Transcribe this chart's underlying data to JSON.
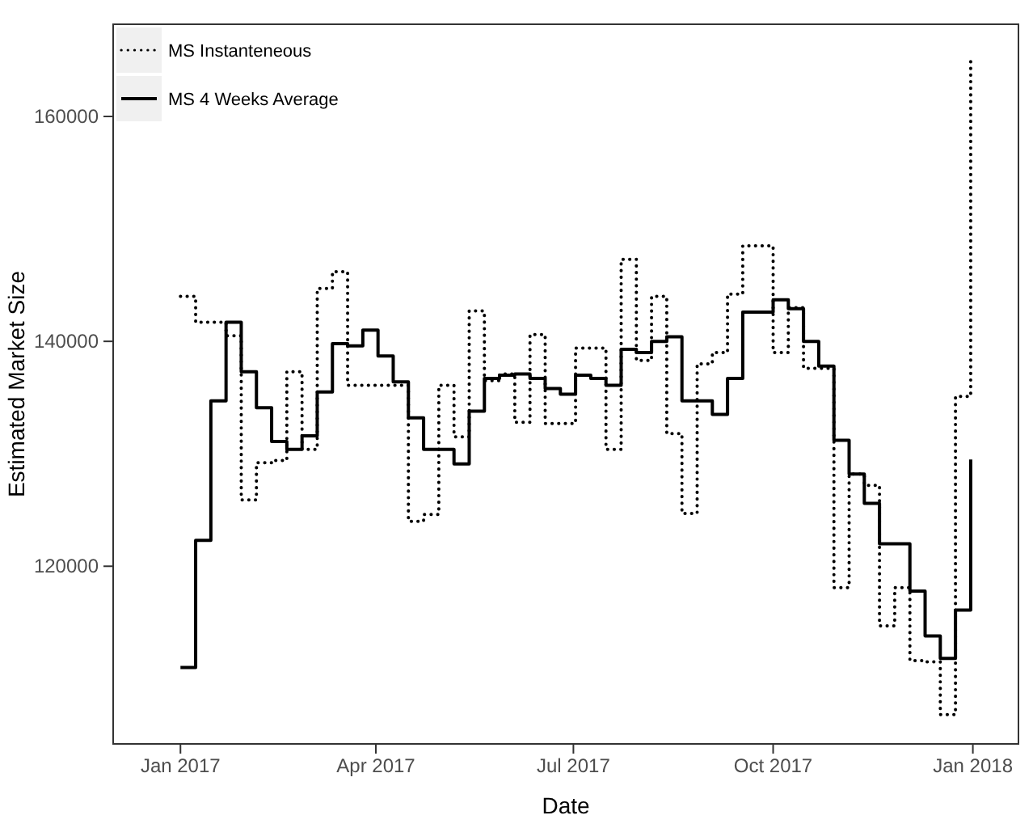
{
  "chart_data": {
    "type": "step",
    "xlabel": "Date",
    "ylabel": "Estimated Market Size",
    "x": [
      "2017-01-01",
      "2017-01-08",
      "2017-01-15",
      "2017-01-22",
      "2017-01-29",
      "2017-02-05",
      "2017-02-12",
      "2017-02-19",
      "2017-02-26",
      "2017-03-05",
      "2017-03-12",
      "2017-03-19",
      "2017-03-26",
      "2017-04-02",
      "2017-04-09",
      "2017-04-16",
      "2017-04-23",
      "2017-04-30",
      "2017-05-07",
      "2017-05-14",
      "2017-05-21",
      "2017-05-28",
      "2017-06-04",
      "2017-06-11",
      "2017-06-18",
      "2017-06-25",
      "2017-07-02",
      "2017-07-09",
      "2017-07-16",
      "2017-07-23",
      "2017-07-30",
      "2017-08-06",
      "2017-08-13",
      "2017-08-20",
      "2017-08-27",
      "2017-09-03",
      "2017-09-10",
      "2017-09-17",
      "2017-09-24",
      "2017-10-01",
      "2017-10-08",
      "2017-10-15",
      "2017-10-22",
      "2017-10-29",
      "2017-11-05",
      "2017-11-12",
      "2017-11-19",
      "2017-11-26",
      "2017-12-03",
      "2017-12-10",
      "2017-12-17",
      "2017-12-24",
      "2017-12-31"
    ],
    "series": [
      {
        "name": "MS Instanteneous",
        "color": "#000000",
        "line_style": "dotted",
        "values": [
          144000,
          141700,
          141700,
          140500,
          125900,
          129200,
          129400,
          137300,
          130400,
          144700,
          146200,
          136100,
          136100,
          136100,
          136100,
          124000,
          124600,
          136100,
          131500,
          142700,
          136500,
          137100,
          132800,
          140600,
          132700,
          132700,
          139400,
          139400,
          130400,
          147300,
          138300,
          144000,
          131800,
          124700,
          138000,
          139000,
          144200,
          148500,
          148500,
          139000,
          143000,
          137600,
          137600,
          118100,
          128200,
          127200,
          114700,
          118100,
          111600,
          111500,
          106800,
          135100,
          165300
        ]
      },
      {
        "name": "MS 4 Weeks Average",
        "color": "#000000",
        "line_style": "solid",
        "values": [
          111000,
          122300,
          134700,
          141700,
          137300,
          134100,
          131100,
          130400,
          131600,
          135500,
          139800,
          139600,
          141000,
          138700,
          136400,
          133200,
          130400,
          130400,
          129100,
          133800,
          136700,
          137000,
          137100,
          136700,
          135800,
          135300,
          137000,
          136700,
          136100,
          139300,
          139000,
          140000,
          140400,
          134700,
          134700,
          133500,
          136700,
          142600,
          142600,
          143700,
          142900,
          140000,
          137800,
          131200,
          128200,
          125600,
          122000,
          122000,
          117800,
          113800,
          111800,
          116100,
          129500
        ]
      }
    ],
    "xlim": [
      "2016-12-01",
      "2018-01-22"
    ],
    "xticks": [
      {
        "value": "2017-01-01",
        "label": "Jan 2017"
      },
      {
        "value": "2017-04-01",
        "label": "Apr 2017"
      },
      {
        "value": "2017-07-01",
        "label": "Jul 2017"
      },
      {
        "value": "2017-10-01",
        "label": "Oct 2017"
      },
      {
        "value": "2018-01-01",
        "label": "Jan 2018"
      }
    ],
    "ylim": [
      104200,
      168200
    ],
    "yticks": [
      120000,
      140000,
      160000
    ],
    "grid": false,
    "legend": "top left"
  }
}
